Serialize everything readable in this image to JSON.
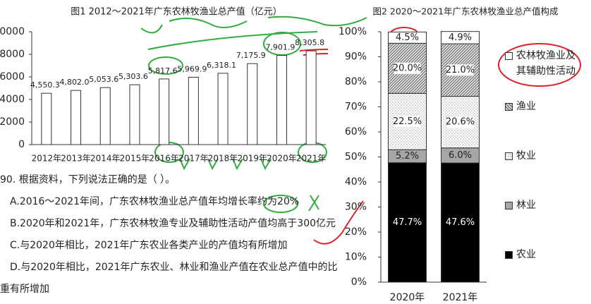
{
  "chart_data": [
    {
      "type": "bar",
      "title": "图1 2012～2021年广东农林牧渔业总产值（亿元）",
      "categories": [
        "2012年",
        "2013年",
        "2014年",
        "2015年",
        "2016年",
        "2017年",
        "2018年",
        "2019年",
        "2020年",
        "2021年"
      ],
      "values": [
        4550.3,
        4802.0,
        5053.6,
        5303.6,
        5817.6,
        5969.9,
        6318.1,
        7175.9,
        7901.9,
        8305.8
      ],
      "value_labels": [
        "4,550.3",
        "4,802.0",
        "5,053.6",
        "5,303.6",
        "5,817.6",
        "5,969.9",
        "6,318.1",
        "7,175.9",
        "7,901.9",
        "8,305.8"
      ],
      "color": "#ffffff",
      "ylim": [
        0,
        10000
      ],
      "yticks": [
        0,
        2000,
        4000,
        6000,
        8000,
        10000
      ]
    },
    {
      "type": "stacked_bar",
      "title": "图2 2020～2021年广东农林牧渔业总产值构成",
      "categories": [
        "2020年",
        "2021年"
      ],
      "series": [
        {
          "name": "农业",
          "color": "#000000",
          "values": [
            47.7,
            47.6
          ],
          "value_labels": [
            "47.7%",
            "47.6%"
          ]
        },
        {
          "name": "林业",
          "color": "#a6a6a6",
          "values": [
            5.2,
            6.0
          ],
          "value_labels": [
            "5.2%",
            "6.0%"
          ]
        },
        {
          "name": "牧业",
          "color": "#ffffff",
          "pattern": "dots",
          "values": [
            22.5,
            20.6
          ],
          "value_labels": [
            "22.5%",
            "20.6%"
          ]
        },
        {
          "name": "渔业",
          "color": "#ffffff",
          "pattern": "hatch",
          "values": [
            20.0,
            21.0
          ],
          "value_labels": [
            "20.0%",
            "21.0%"
          ]
        },
        {
          "name": "农林牧渔业及其辅助性活动",
          "color": "#ffffff",
          "values": [
            4.5,
            4.9
          ],
          "value_labels": [
            "4.5%",
            "4.9%"
          ]
        }
      ],
      "ylim": [
        0,
        100
      ],
      "yticks": [
        {
          "value": 0,
          "label": "0%"
        },
        {
          "value": 10,
          "label": "10%"
        },
        {
          "value": 20,
          "label": "20%"
        },
        {
          "value": 30,
          "label": "30%"
        },
        {
          "value": 40,
          "label": "40%"
        },
        {
          "value": 50,
          "label": "50%"
        },
        {
          "value": 60,
          "label": "60%"
        },
        {
          "value": 70,
          "label": "70%"
        },
        {
          "value": 80,
          "label": "80%"
        },
        {
          "value": 90,
          "label": "90%"
        },
        {
          "value": 100,
          "label": "100%"
        }
      ],
      "legend": "right"
    }
  ],
  "question": {
    "stem": "90. 根据资料，下列说法正确的是（ ）。",
    "options": [
      "A.2016～2021年间，广东农林牧渔业总产值年均增长率约为20%",
      "B.2020年和2021年，广东农林牧渔专业及辅助性活动产值均高于300亿元",
      "C.与2020年相比，2021年广东农业各类产业的产值均有所增加",
      "D.与2020年相比，2021年广东农业、林业和渔业产值在农业总产值中的比重有所增加"
    ]
  }
}
